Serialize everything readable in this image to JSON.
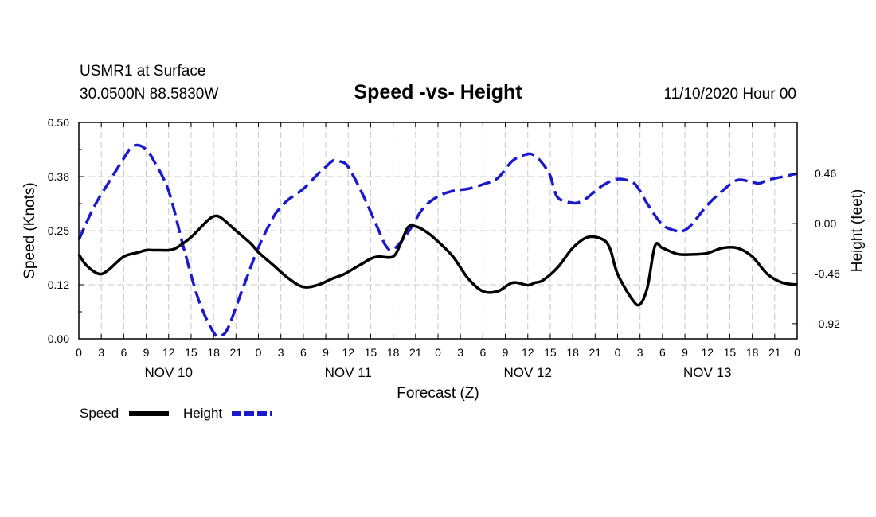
{
  "header": {
    "station": "USMR1 at Surface",
    "coords": "30.0500N 88.5830W",
    "title": "Speed -vs- Height",
    "datetime": "11/10/2020 Hour 00"
  },
  "chart_data": {
    "type": "line",
    "title": "Speed -vs- Height",
    "xlabel": "Forecast (Z)",
    "ylabel_left": "Speed (Knots)",
    "ylabel_right": "Height (feet)",
    "x_unit": "forecast hour",
    "xlim": [
      0,
      96
    ],
    "ylim_left": [
      0,
      0.5
    ],
    "ylim_right": [
      -1.06,
      0.93
    ],
    "left_ticks": [
      "0.00",
      "0.12",
      "0.25",
      "0.38",
      "0.50"
    ],
    "left_tick_values": [
      0,
      0.125,
      0.25,
      0.375,
      0.5
    ],
    "right_ticks": [
      "-0.92",
      "-0.46",
      "0.00",
      "0.46"
    ],
    "right_tick_values": [
      -0.92,
      -0.46,
      0,
      0.46
    ],
    "x_tick_labels": [
      "0",
      "3",
      "6",
      "9",
      "12",
      "15",
      "18",
      "21",
      "0",
      "3",
      "6",
      "9",
      "12",
      "15",
      "18",
      "21",
      "0",
      "3",
      "6",
      "9",
      "12",
      "15",
      "18",
      "21",
      "0",
      "3",
      "6",
      "9",
      "12",
      "15",
      "18",
      "21",
      "0"
    ],
    "day_labels": [
      {
        "label": "NOV 10",
        "center_hour": 12
      },
      {
        "label": "NOV 11",
        "center_hour": 36
      },
      {
        "label": "NOV 12",
        "center_hour": 60
      },
      {
        "label": "NOV 13",
        "center_hour": 84
      }
    ],
    "grid": true,
    "series": [
      {
        "name": "Speed",
        "axis": "left",
        "color": "#000000",
        "style": "solid",
        "x": [
          0,
          1,
          2.7,
          4,
          6,
          8,
          9,
          10,
          11,
          12,
          13,
          15,
          17,
          18,
          19,
          21,
          23,
          24,
          26,
          28,
          30,
          32,
          34,
          35.5,
          37,
          38,
          39,
          40,
          42,
          43,
          44,
          45,
          46,
          47,
          48,
          50,
          52,
          54,
          56,
          58,
          60,
          61,
          62,
          64,
          66,
          68,
          70,
          71,
          72,
          74,
          75,
          76,
          77,
          78,
          80,
          82,
          84,
          86,
          88,
          90,
          92,
          94,
          96
        ],
        "values": [
          0.195,
          0.17,
          0.15,
          0.16,
          0.19,
          0.2,
          0.205,
          0.205,
          0.205,
          0.205,
          0.21,
          0.235,
          0.27,
          0.283,
          0.28,
          0.25,
          0.22,
          0.2,
          0.17,
          0.14,
          0.12,
          0.125,
          0.14,
          0.15,
          0.165,
          0.175,
          0.185,
          0.19,
          0.19,
          0.22,
          0.258,
          0.26,
          0.252,
          0.24,
          0.225,
          0.19,
          0.14,
          0.11,
          0.11,
          0.13,
          0.124,
          0.13,
          0.135,
          0.165,
          0.21,
          0.235,
          0.23,
          0.208,
          0.15,
          0.09,
          0.08,
          0.12,
          0.215,
          0.21,
          0.196,
          0.195,
          0.198,
          0.21,
          0.21,
          0.19,
          0.15,
          0.13,
          0.125
        ]
      },
      {
        "name": "Height",
        "axis": "right",
        "color": "#1a1acc",
        "style": "dashed",
        "x": [
          0,
          2,
          4,
          6,
          7,
          8,
          9,
          10,
          12,
          14,
          16,
          18,
          19,
          20,
          22,
          24,
          26,
          27,
          28,
          30,
          32,
          33,
          34,
          35,
          36,
          38,
          40,
          41,
          42,
          44,
          46,
          48,
          50,
          52,
          54,
          56,
          58,
          60,
          61,
          62,
          63,
          64,
          66,
          67,
          68,
          70,
          72,
          74,
          75,
          76,
          78,
          80,
          81,
          82,
          84,
          86,
          88,
          90,
          91,
          92,
          94,
          96
        ],
        "values": [
          -0.15,
          0.15,
          0.38,
          0.6,
          0.7,
          0.72,
          0.68,
          0.58,
          0.3,
          -0.22,
          -0.7,
          -1.0,
          -1.03,
          -0.95,
          -0.58,
          -0.22,
          0.06,
          0.15,
          0.22,
          0.32,
          0.46,
          0.52,
          0.58,
          0.57,
          0.52,
          0.26,
          -0.05,
          -0.2,
          -0.24,
          -0.08,
          0.14,
          0.25,
          0.3,
          0.32,
          0.36,
          0.42,
          0.58,
          0.64,
          0.62,
          0.55,
          0.44,
          0.24,
          0.19,
          0.2,
          0.24,
          0.35,
          0.41,
          0.38,
          0.3,
          0.18,
          -0.01,
          -0.07,
          -0.06,
          0.0,
          0.17,
          0.3,
          0.4,
          0.38,
          0.37,
          0.4,
          0.43,
          0.46
        ]
      }
    ],
    "legend": [
      {
        "label": "Speed",
        "color": "#000000",
        "style": "solid"
      },
      {
        "label": "Height",
        "color": "#1a1acc",
        "style": "dashed"
      }
    ]
  }
}
